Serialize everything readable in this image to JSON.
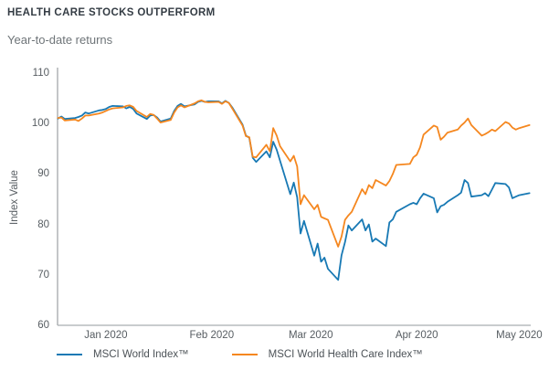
{
  "header": {
    "title": "HEALTH CARE STOCKS OUTPERFORM",
    "subtitle": "Year-to-date returns"
  },
  "chart_data": {
    "type": "line",
    "title": "HEALTH CARE STOCKS OUTPERFORM",
    "subtitle": "Year-to-date returns",
    "xlabel": "",
    "ylabel": "Index Value",
    "ylim": [
      60,
      110
    ],
    "yticks": [
      60,
      70,
      80,
      90,
      100,
      110
    ],
    "grid": false,
    "legend_position": "bottom",
    "x_range": {
      "start": "2020-01-01",
      "end": "2020-05-18"
    },
    "xticks": [
      {
        "label": "Jan 2020",
        "date": "2020-01-15"
      },
      {
        "label": "Feb 2020",
        "date": "2020-02-15"
      },
      {
        "label": "Mar 2020",
        "date": "2020-03-15"
      },
      {
        "label": "Apr 2020",
        "date": "2020-04-15"
      },
      {
        "label": "May 2020",
        "date": "2020-05-15"
      }
    ],
    "dates": [
      "2020-01-01",
      "2020-01-02",
      "2020-01-03",
      "2020-01-06",
      "2020-01-07",
      "2020-01-08",
      "2020-01-09",
      "2020-01-10",
      "2020-01-13",
      "2020-01-14",
      "2020-01-15",
      "2020-01-16",
      "2020-01-17",
      "2020-01-20",
      "2020-01-21",
      "2020-01-22",
      "2020-01-23",
      "2020-01-24",
      "2020-01-27",
      "2020-01-28",
      "2020-01-29",
      "2020-01-30",
      "2020-01-31",
      "2020-02-03",
      "2020-02-04",
      "2020-02-05",
      "2020-02-06",
      "2020-02-07",
      "2020-02-10",
      "2020-02-11",
      "2020-02-12",
      "2020-02-13",
      "2020-02-14",
      "2020-02-17",
      "2020-02-18",
      "2020-02-19",
      "2020-02-20",
      "2020-02-21",
      "2020-02-24",
      "2020-02-25",
      "2020-02-26",
      "2020-02-27",
      "2020-02-28",
      "2020-03-02",
      "2020-03-03",
      "2020-03-04",
      "2020-03-05",
      "2020-03-06",
      "2020-03-09",
      "2020-03-10",
      "2020-03-11",
      "2020-03-12",
      "2020-03-13",
      "2020-03-16",
      "2020-03-17",
      "2020-03-18",
      "2020-03-19",
      "2020-03-20",
      "2020-03-23",
      "2020-03-24",
      "2020-03-25",
      "2020-03-26",
      "2020-03-27",
      "2020-03-30",
      "2020-03-31",
      "2020-04-01",
      "2020-04-02",
      "2020-04-03",
      "2020-04-06",
      "2020-04-07",
      "2020-04-08",
      "2020-04-09",
      "2020-04-13",
      "2020-04-14",
      "2020-04-15",
      "2020-04-16",
      "2020-04-17",
      "2020-04-20",
      "2020-04-21",
      "2020-04-22",
      "2020-04-23",
      "2020-04-24",
      "2020-04-27",
      "2020-04-28",
      "2020-04-29",
      "2020-04-30",
      "2020-05-01",
      "2020-05-04",
      "2020-05-05",
      "2020-05-06",
      "2020-05-07",
      "2020-05-08",
      "2020-05-11",
      "2020-05-12",
      "2020-05-13",
      "2020-05-14",
      "2020-05-15",
      "2020-05-18"
    ],
    "series": [
      {
        "name": "MSCI World Index™",
        "key": "world",
        "color": "#1879b4",
        "values": [
          101.0,
          101.4,
          100.9,
          101.1,
          101.3,
          101.6,
          102.2,
          102.0,
          102.6,
          102.7,
          102.9,
          103.3,
          103.5,
          103.4,
          103.0,
          103.3,
          102.9,
          102.0,
          100.9,
          101.6,
          101.7,
          101.2,
          100.4,
          101.0,
          102.5,
          103.5,
          103.9,
          103.4,
          103.8,
          104.3,
          104.5,
          104.3,
          104.4,
          104.4,
          104.0,
          104.5,
          104.1,
          103.2,
          99.8,
          97.6,
          97.2,
          93.2,
          92.4,
          94.5,
          93.3,
          96.4,
          94.8,
          92.6,
          86.0,
          88.3,
          85.4,
          78.2,
          80.7,
          73.8,
          76.2,
          72.6,
          73.4,
          71.2,
          69.0,
          73.9,
          76.5,
          79.8,
          78.8,
          81.0,
          78.8,
          80.0,
          76.6,
          77.2,
          75.7,
          80.4,
          81.0,
          82.5,
          84.0,
          84.3,
          84.0,
          85.2,
          86.1,
          85.2,
          82.4,
          83.6,
          83.9,
          84.5,
          85.8,
          86.3,
          88.8,
          88.2,
          85.5,
          85.8,
          86.2,
          85.6,
          86.9,
          88.2,
          88.0,
          87.3,
          85.2,
          85.5,
          85.8,
          86.2
        ]
      },
      {
        "name": "MSCI World Health Care Index™",
        "key": "healthcare",
        "color": "#f5871f",
        "values": [
          101.1,
          101.2,
          100.6,
          100.8,
          100.5,
          101.0,
          101.6,
          101.6,
          102.0,
          102.2,
          102.5,
          102.8,
          103.0,
          103.2,
          103.5,
          103.6,
          103.3,
          102.5,
          101.3,
          101.9,
          101.7,
          101.0,
          100.2,
          100.7,
          102.2,
          103.2,
          103.6,
          103.2,
          104.0,
          104.4,
          104.6,
          104.3,
          104.2,
          104.3,
          103.9,
          104.4,
          104.1,
          103.0,
          99.6,
          97.5,
          97.3,
          93.4,
          93.3,
          95.8,
          94.5,
          99.1,
          97.6,
          95.5,
          92.5,
          93.6,
          91.5,
          84.0,
          85.8,
          83.0,
          83.9,
          81.5,
          81.2,
          80.9,
          75.6,
          77.6,
          80.9,
          81.8,
          82.5,
          87.0,
          86.0,
          87.8,
          87.2,
          88.8,
          87.7,
          88.6,
          90.0,
          91.8,
          92.0,
          93.3,
          93.8,
          95.3,
          97.8,
          99.6,
          99.3,
          96.8,
          97.4,
          98.2,
          98.8,
          99.6,
          100.2,
          101.0,
          99.7,
          97.6,
          97.9,
          98.3,
          98.8,
          98.5,
          100.3,
          100.0,
          99.2,
          98.8,
          99.1,
          99.7
        ]
      }
    ]
  }
}
